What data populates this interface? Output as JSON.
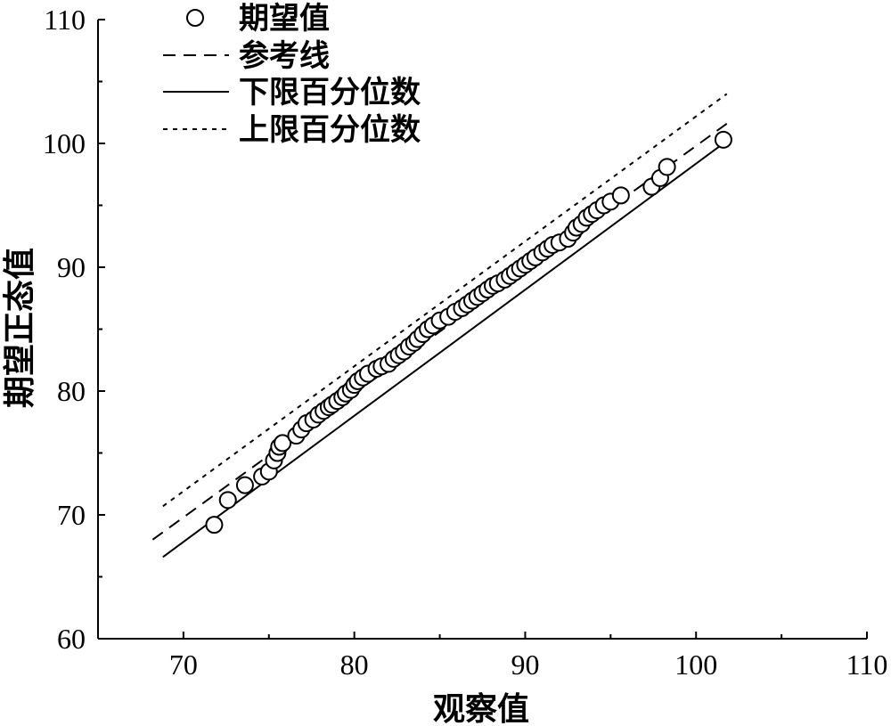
{
  "chart_data": {
    "type": "scatter",
    "title": "",
    "xlabel": "观察值",
    "ylabel": "期望正态值",
    "xlim": [
      65,
      110
    ],
    "ylim": [
      60,
      110
    ],
    "xticks": [
      "70",
      "80",
      "90",
      "100",
      "110"
    ],
    "yticks": [
      "60",
      "70",
      "80",
      "90",
      "100",
      "110"
    ],
    "grid": false,
    "legend_position": "top-left",
    "legend": [
      {
        "key": "expected",
        "label": "期望值",
        "style": "circle"
      },
      {
        "key": "reference",
        "label": "参考线",
        "style": "dashed"
      },
      {
        "key": "lower",
        "label": "下限百分位数",
        "style": "solid"
      },
      {
        "key": "upper",
        "label": "上限百分位数",
        "style": "dotted"
      }
    ],
    "lines": {
      "reference": {
        "x": [
          68.2,
          101.8
        ],
        "y": [
          68.0,
          101.6
        ]
      },
      "lower": {
        "x": [
          68.8,
          101.8
        ],
        "y": [
          66.6,
          100.2
        ]
      },
      "upper": {
        "x": [
          68.8,
          101.8
        ],
        "y": [
          70.7,
          104.0
        ]
      }
    },
    "points": {
      "x": [
        71.8,
        72.6,
        73.6,
        74.6,
        75.0,
        75.3,
        75.5,
        75.6,
        75.8,
        76.6,
        76.9,
        77.2,
        77.6,
        77.9,
        78.2,
        78.5,
        78.7,
        79.0,
        79.3,
        79.5,
        79.8,
        80.0,
        80.2,
        80.5,
        80.8,
        81.3,
        81.6,
        82.0,
        82.3,
        82.6,
        82.9,
        83.2,
        83.5,
        83.7,
        84.0,
        84.3,
        84.6,
        85.0,
        85.5,
        85.9,
        86.3,
        86.6,
        86.9,
        87.2,
        87.5,
        87.8,
        88.1,
        88.4,
        88.8,
        89.1,
        89.4,
        89.7,
        90.0,
        90.3,
        90.6,
        91.0,
        91.3,
        91.6,
        92.0,
        92.5,
        92.8,
        93.0,
        93.3,
        93.6,
        93.9,
        94.2,
        94.6,
        95.0,
        95.6,
        97.4,
        97.9,
        98.3,
        101.6
      ],
      "y": [
        69.2,
        71.2,
        72.4,
        73.1,
        73.5,
        74.4,
        75.0,
        75.5,
        75.8,
        76.4,
        76.9,
        77.4,
        77.7,
        78.1,
        78.4,
        78.7,
        78.9,
        79.2,
        79.5,
        79.8,
        80.1,
        80.5,
        80.8,
        81.1,
        81.4,
        81.8,
        82.0,
        82.2,
        82.6,
        82.9,
        83.2,
        83.6,
        83.9,
        84.2,
        84.6,
        85.0,
        85.3,
        85.7,
        86.0,
        86.4,
        86.7,
        87.0,
        87.3,
        87.6,
        87.9,
        88.2,
        88.5,
        88.7,
        89.0,
        89.3,
        89.6,
        89.9,
        90.2,
        90.5,
        90.8,
        91.2,
        91.5,
        91.8,
        92.0,
        92.3,
        92.8,
        93.2,
        93.5,
        94.0,
        94.3,
        94.6,
        95.0,
        95.3,
        95.8,
        96.5,
        97.2,
        98.1,
        100.3
      ]
    }
  }
}
